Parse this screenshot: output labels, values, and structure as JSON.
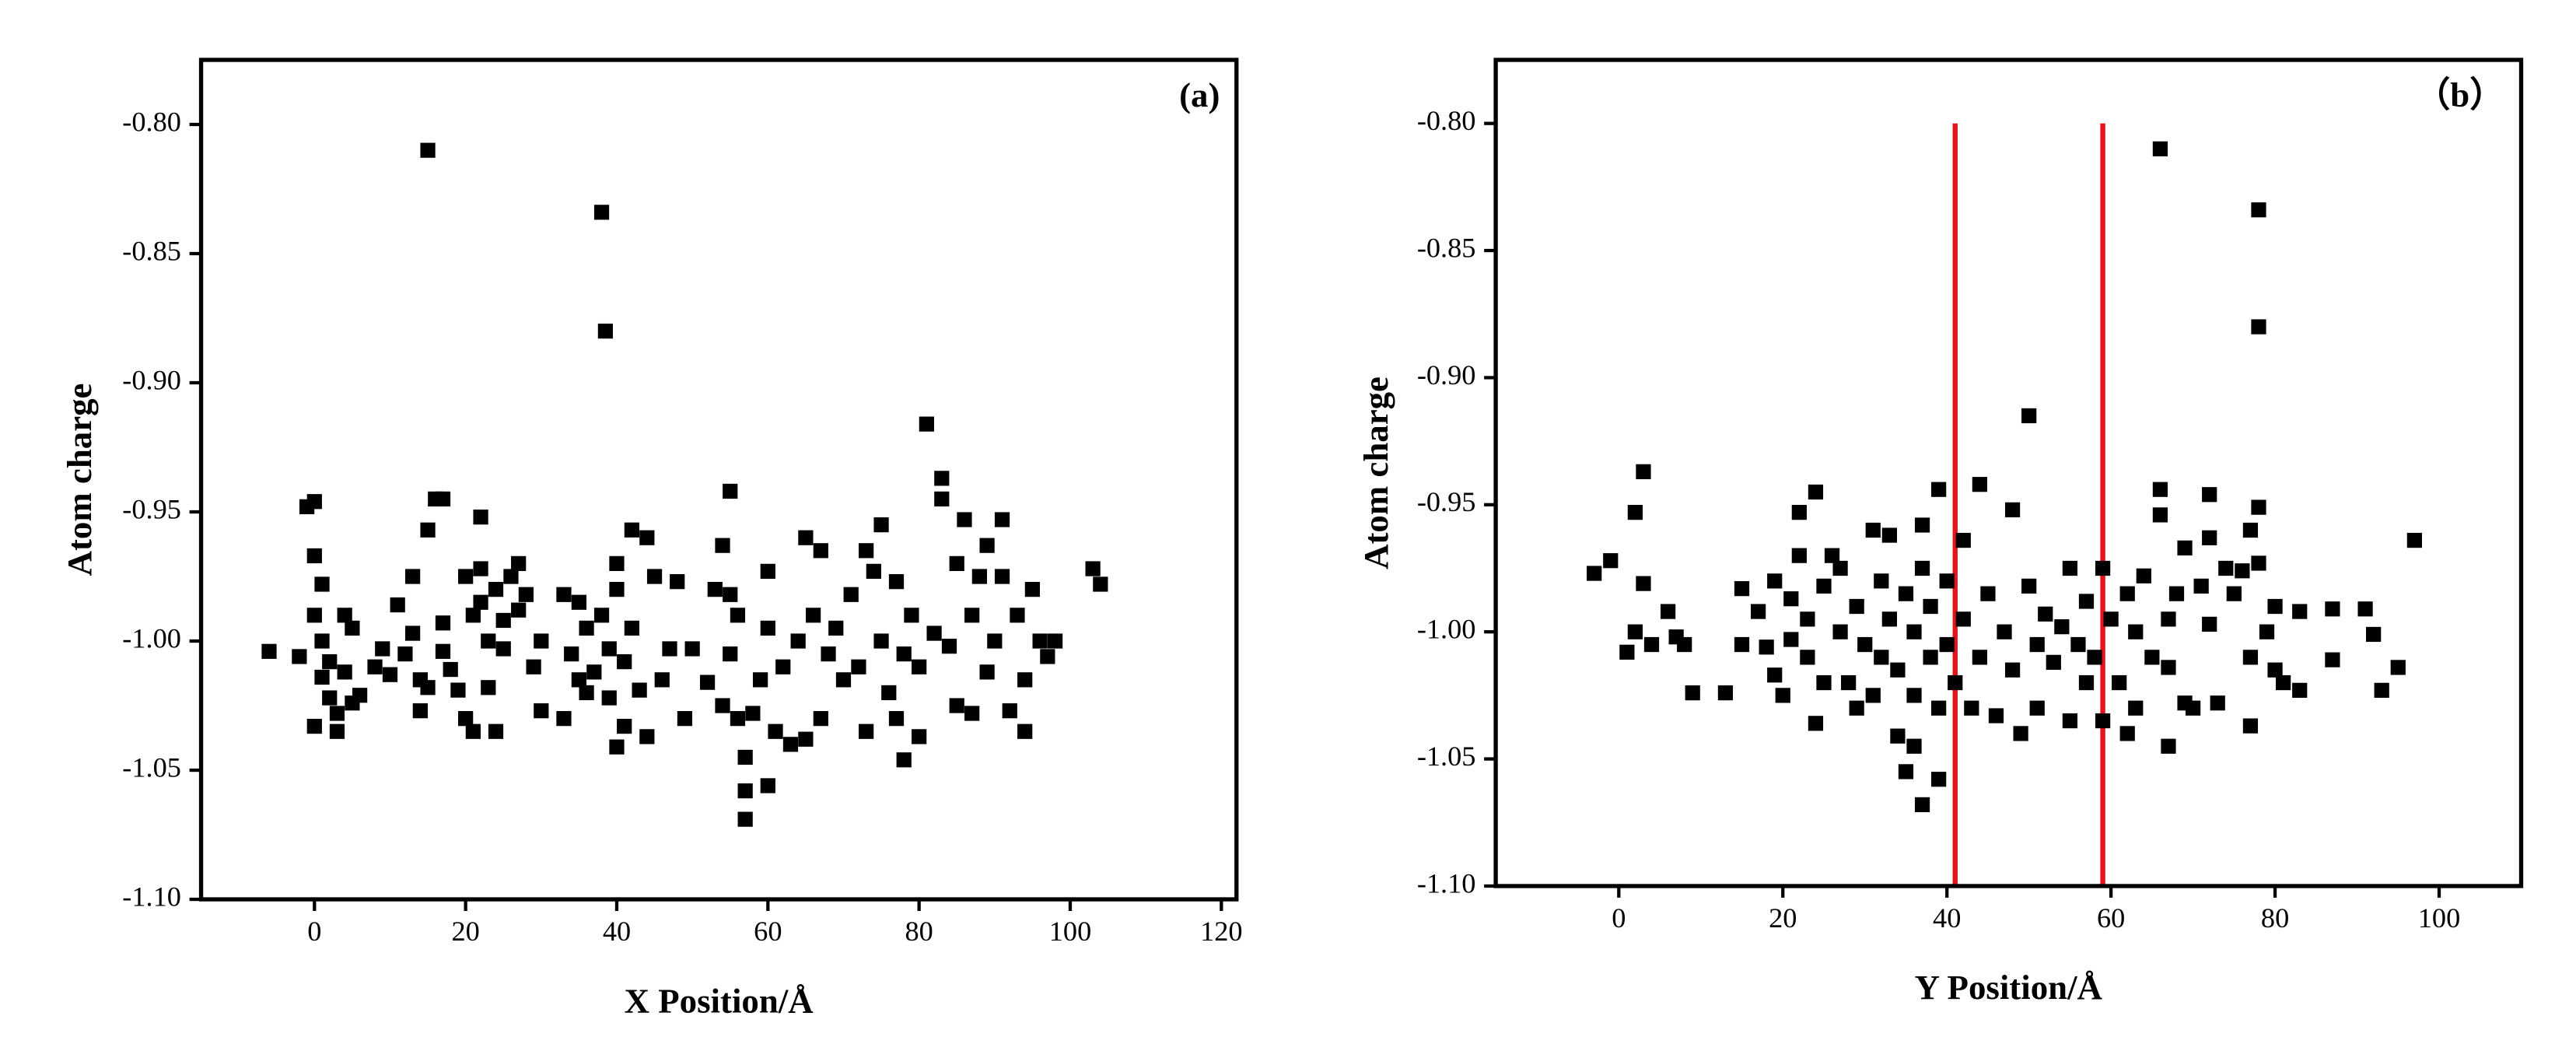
{
  "chart_data": [
    {
      "type": "scatter",
      "label": "(a)",
      "xlabel": "X Position/Å",
      "ylabel": "Atom charge",
      "color": "#000000",
      "marker": "square",
      "xlim": [
        -15,
        122
      ],
      "ylim": [
        -1.1,
        -0.775
      ],
      "xticks": [
        0,
        20,
        40,
        60,
        80,
        100,
        120
      ],
      "yticks": [
        {
          "value": -0.8,
          "label": "-0.80"
        },
        -0.85,
        {
          "value": -0.9,
          "label": "-0.90"
        },
        -0.95,
        {
          "value": -1.0,
          "label": "-1.00"
        },
        -1.05,
        {
          "value": -1.1,
          "label": "-1.10"
        }
      ],
      "x": [
        -6,
        -2,
        -1,
        0,
        0,
        1,
        0,
        1,
        1,
        0,
        2,
        2,
        3,
        3,
        4,
        4,
        5,
        5,
        6,
        8,
        9,
        10,
        11,
        12,
        13,
        13,
        14,
        14,
        15,
        15,
        15,
        16,
        17,
        17,
        17,
        18,
        19,
        20,
        20,
        21,
        21,
        22,
        22,
        22,
        23,
        23,
        24,
        24,
        25,
        25,
        26,
        27,
        27,
        28,
        29,
        30,
        30,
        33,
        33,
        34,
        35,
        35,
        36,
        36,
        37,
        38,
        38,
        38.5,
        39,
        39,
        40,
        40,
        40,
        41,
        41,
        42,
        42,
        43,
        44,
        44,
        45,
        46,
        47,
        48,
        49,
        50,
        52,
        53,
        54,
        54,
        55,
        55,
        55,
        56,
        56,
        57,
        57,
        57,
        58,
        59,
        60,
        60,
        60,
        61,
        62,
        63,
        64,
        65,
        65,
        66,
        67,
        67,
        68,
        69,
        70,
        71,
        72,
        73,
        73,
        74,
        75,
        75,
        76,
        77,
        77,
        78,
        78,
        79,
        80,
        80,
        81,
        82,
        83,
        83,
        84,
        85,
        85,
        86,
        87,
        87,
        88,
        89,
        89,
        90,
        91,
        91,
        92,
        93,
        94,
        94,
        95,
        96,
        97,
        98,
        103,
        104
      ],
      "y": [
        -1.004,
        -1.006,
        -0.948,
        -0.946,
        -0.967,
        -0.978,
        -0.99,
        -1.0,
        -1.014,
        -1.033,
        -1.022,
        -1.008,
        -1.028,
        -1.035,
        -0.99,
        -1.012,
        -0.995,
        -1.024,
        -1.021,
        -1.01,
        -1.003,
        -1.013,
        -0.986,
        -1.005,
        -0.975,
        -0.997,
        -1.015,
        -1.027,
        -0.957,
        -0.81,
        -1.018,
        -0.945,
        -0.945,
        -0.993,
        -1.004,
        -1.011,
        -1.019,
        -0.975,
        -1.03,
        -1.035,
        -0.99,
        -0.952,
        -0.972,
        -0.985,
        -1.0,
        -1.018,
        -1.035,
        -0.98,
        -1.003,
        -0.992,
        -0.975,
        -0.97,
        -0.988,
        -0.982,
        -1.01,
        -1.027,
        -1.0,
        -0.982,
        -1.03,
        -1.005,
        -0.985,
        -1.015,
        -0.995,
        -1.02,
        -1.012,
        -0.834,
        -0.99,
        -0.88,
        -1.003,
        -1.022,
        -1.041,
        -0.97,
        -0.98,
        -1.008,
        -1.033,
        -0.957,
        -0.995,
        -1.019,
        -0.96,
        -1.037,
        -0.975,
        -1.015,
        -1.003,
        -0.977,
        -1.03,
        -1.003,
        -1.016,
        -0.98,
        -0.963,
        -1.025,
        -0.942,
        -0.982,
        -1.005,
        -0.99,
        -1.03,
        -1.045,
        -1.058,
        -1.069,
        -1.028,
        -1.015,
        -1.056,
        -0.995,
        -0.973,
        -1.035,
        -1.01,
        -1.04,
        -1.0,
        -0.96,
        -1.038,
        -0.99,
        -0.965,
        -1.03,
        -1.005,
        -0.995,
        -1.015,
        -0.982,
        -1.01,
        -0.965,
        -1.035,
        -0.973,
        -0.955,
        -1.0,
        -1.02,
        -0.977,
        -1.03,
        -1.046,
        -1.005,
        -0.99,
        -1.01,
        -1.037,
        -0.916,
        -0.997,
        -0.937,
        -0.945,
        -1.002,
        -0.97,
        -1.025,
        -0.953,
        -0.99,
        -1.028,
        -0.975,
        -0.963,
        -1.012,
        -1.0,
        -0.953,
        -0.975,
        -1.027,
        -0.99,
        -1.015,
        -1.035,
        -0.98,
        -1.0,
        -1.006,
        -1.0,
        -0.972,
        -0.978
      ]
    },
    {
      "type": "scatter",
      "label": "（b）",
      "xlabel": "Y Position/Å",
      "ylabel": "Atom charge",
      "color": "#000000",
      "marker": "square",
      "xlim": [
        -15,
        110
      ],
      "ylim": [
        -1.1,
        -0.775
      ],
      "xticks": [
        0,
        20,
        40,
        60,
        80,
        100
      ],
      "yticks": [
        {
          "value": -0.8,
          "label": "-0.80"
        },
        -0.85,
        {
          "value": -0.9,
          "label": "-0.90"
        },
        -0.95,
        {
          "value": -1.0,
          "label": "-1.00"
        },
        -1.05,
        {
          "value": -1.1,
          "label": "-1.10"
        }
      ],
      "vlines": [
        41,
        59
      ],
      "vline_color": "#e8141b",
      "vline_range": [
        -1.1,
        -0.8
      ],
      "x": [
        -3,
        -1,
        1,
        2,
        2,
        3,
        3,
        4,
        6,
        7,
        8,
        9,
        13,
        15,
        15,
        17,
        18,
        19,
        19,
        20,
        21,
        21,
        22,
        22,
        23,
        23,
        24,
        24,
        25,
        25,
        26,
        27,
        27,
        28,
        29,
        29,
        30,
        31,
        31,
        32,
        32,
        33,
        33,
        34,
        34,
        35,
        35,
        36,
        36,
        36,
        37,
        37,
        37,
        38,
        38,
        39,
        39,
        39,
        40,
        40,
        41,
        42,
        42,
        43,
        44,
        44,
        45,
        46,
        47,
        48,
        48,
        49,
        50,
        50,
        51,
        51,
        52,
        53,
        54,
        55,
        55,
        56,
        57,
        57,
        58,
        59,
        59,
        60,
        61,
        62,
        62,
        63,
        63,
        64,
        65,
        66,
        66,
        66,
        67,
        67,
        67,
        68,
        69,
        69,
        70,
        71,
        72,
        72,
        72,
        73,
        74,
        75,
        76,
        77,
        77,
        77,
        78,
        78,
        78,
        78,
        79,
        80,
        80,
        81,
        83,
        83,
        87,
        87,
        91,
        92,
        93,
        95,
        97
      ],
      "y": [
        -0.977,
        -0.972,
        -1.008,
        -0.953,
        -1.0,
        -0.937,
        -0.981,
        -1.005,
        -0.992,
        -1.002,
        -1.005,
        -1.024,
        -1.024,
        -0.983,
        -1.005,
        -0.992,
        -1.006,
        -0.98,
        -1.017,
        -1.025,
        -0.987,
        -1.003,
        -0.953,
        -0.97,
        -0.995,
        -1.01,
        -0.945,
        -1.036,
        -0.982,
        -1.02,
        -0.97,
        -1.0,
        -0.975,
        -1.02,
        -0.99,
        -1.03,
        -1.005,
        -0.96,
        -1.025,
        -0.98,
        -1.01,
        -0.962,
        -0.995,
        -1.041,
        -1.015,
        -1.055,
        -0.985,
        -1.045,
        -1.0,
        -1.025,
        -1.068,
        -0.975,
        -0.958,
        -1.01,
        -0.99,
        -1.058,
        -0.944,
        -1.03,
        -0.98,
        -1.005,
        -1.02,
        -0.964,
        -0.995,
        -1.03,
        -0.942,
        -1.01,
        -0.985,
        -1.033,
        -1.0,
        -0.952,
        -1.015,
        -1.04,
        -0.915,
        -0.982,
        -1.005,
        -1.03,
        -0.993,
        -1.012,
        -0.998,
        -0.975,
        -1.035,
        -1.005,
        -0.988,
        -1.02,
        -1.01,
        -0.975,
        -1.035,
        -0.995,
        -1.02,
        -0.985,
        -1.04,
        -1.0,
        -1.03,
        -0.978,
        -1.01,
        -0.81,
        -0.944,
        -0.954,
        -1.045,
        -0.995,
        -1.014,
        -0.985,
        -0.967,
        -1.028,
        -1.03,
        -0.982,
        -0.946,
        -0.963,
        -0.997,
        -1.028,
        -0.975,
        -0.985,
        -0.976,
        -0.96,
        -1.037,
        -1.01,
        -0.834,
        -0.88,
        -0.951,
        -0.973,
        -1.0,
        -0.99,
        -1.015,
        -1.02,
        -0.992,
        -1.023,
        -0.991,
        -1.011,
        -0.991,
        -1.001,
        -1.023,
        -1.014,
        -0.964
      ]
    }
  ]
}
